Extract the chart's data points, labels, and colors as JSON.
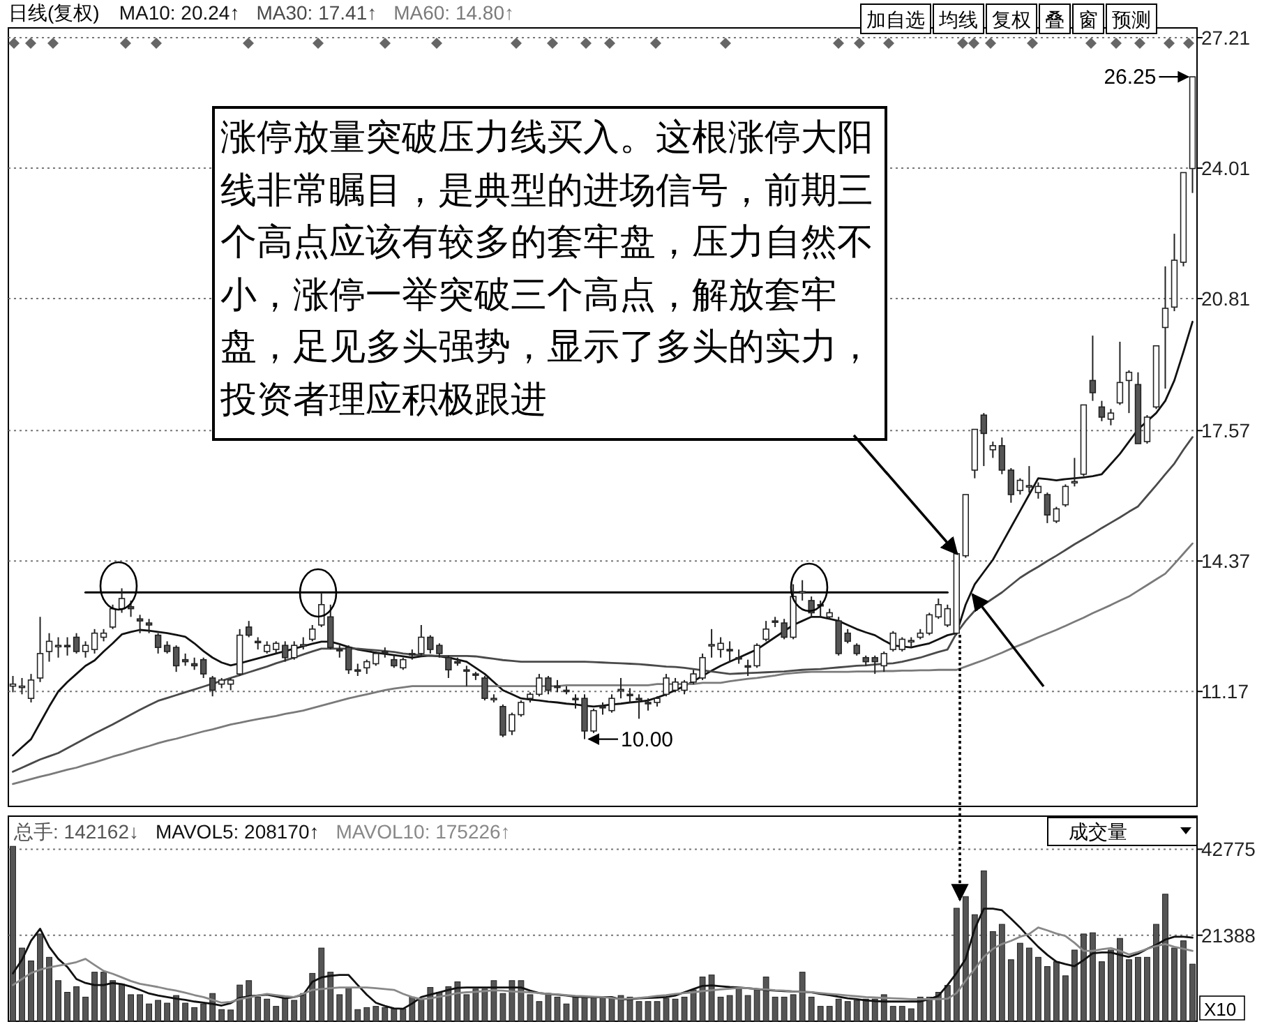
{
  "chart_data": [
    {
      "type": "candlestick",
      "title": "日线(复权)",
      "categories": [
        null,
        null,
        null,
        null,
        null,
        null,
        null,
        null,
        null,
        null,
        null,
        null,
        null,
        null,
        null,
        null,
        null,
        null,
        null,
        null,
        null,
        null,
        null,
        null,
        null,
        null,
        null,
        null,
        null,
        null,
        null,
        null,
        null,
        null,
        null,
        null,
        null,
        null,
        null,
        null,
        null,
        null,
        null,
        null,
        null,
        null,
        null,
        null,
        null,
        null,
        null,
        null,
        null,
        null,
        null,
        null,
        null,
        null,
        null,
        null,
        null,
        null,
        null,
        null,
        null,
        null,
        null,
        null,
        null,
        null,
        null,
        null,
        null,
        null,
        null,
        null,
        null,
        null,
        null,
        null,
        null,
        null,
        null,
        null,
        null,
        null,
        null,
        null,
        null,
        null,
        null,
        null,
        null,
        null,
        null,
        null,
        null,
        null,
        null,
        null,
        null,
        null,
        null,
        null,
        null,
        null,
        null,
        null,
        null,
        null,
        null,
        null,
        null,
        null,
        null,
        null,
        null,
        null,
        null,
        null,
        null,
        null,
        null,
        null,
        null,
        null,
        null,
        null,
        null,
        null,
        null
      ],
      "ohlc": [
        [
          11.3,
          11.55,
          11.15,
          11.35
        ],
        [
          11.3,
          11.5,
          11.1,
          11.3
        ],
        [
          11.0,
          11.6,
          10.9,
          11.45
        ],
        [
          11.5,
          13.0,
          11.4,
          12.1
        ],
        [
          12.15,
          12.6,
          11.9,
          12.4
        ],
        [
          12.3,
          12.5,
          12.0,
          12.3
        ],
        [
          12.3,
          12.5,
          12.05,
          12.28
        ],
        [
          12.5,
          12.6,
          12.1,
          12.15
        ],
        [
          12.15,
          12.4,
          12.0,
          12.3
        ],
        [
          12.2,
          12.7,
          12.1,
          12.6
        ],
        [
          12.5,
          12.7,
          12.4,
          12.6
        ],
        [
          12.75,
          13.3,
          12.7,
          13.2
        ],
        [
          13.2,
          13.7,
          13.1,
          13.45
        ],
        [
          13.25,
          13.4,
          13.0,
          13.2
        ],
        [
          12.95,
          13.05,
          12.6,
          12.9
        ],
        [
          12.85,
          12.95,
          12.6,
          12.8
        ],
        [
          12.55,
          12.6,
          12.1,
          12.25
        ],
        [
          12.3,
          12.4,
          12.1,
          12.15
        ],
        [
          12.25,
          12.3,
          11.65,
          11.8
        ],
        [
          11.95,
          12.1,
          11.8,
          11.9
        ],
        [
          11.85,
          12.0,
          11.7,
          11.8
        ],
        [
          11.95,
          12.0,
          11.5,
          11.6
        ],
        [
          11.5,
          11.55,
          11.05,
          11.2
        ],
        [
          11.35,
          11.5,
          11.25,
          11.45
        ],
        [
          11.35,
          11.5,
          11.2,
          11.45
        ],
        [
          11.6,
          12.7,
          11.55,
          12.55
        ],
        [
          12.75,
          12.9,
          12.5,
          12.55
        ],
        [
          12.4,
          12.5,
          12.2,
          12.38
        ],
        [
          12.15,
          12.4,
          12.1,
          12.3
        ],
        [
          12.2,
          12.4,
          12.1,
          12.35
        ],
        [
          12.3,
          12.4,
          11.9,
          12.0
        ],
        [
          12.0,
          12.4,
          11.95,
          12.3
        ],
        [
          12.3,
          12.5,
          12.2,
          12.32
        ],
        [
          12.45,
          12.8,
          12.4,
          12.7
        ],
        [
          12.8,
          13.6,
          12.75,
          13.3
        ],
        [
          13.0,
          13.3,
          12.2,
          12.25
        ],
        [
          12.2,
          12.3,
          12.0,
          12.18
        ],
        [
          12.25,
          12.3,
          11.6,
          11.7
        ],
        [
          11.7,
          11.85,
          11.55,
          11.68
        ],
        [
          11.75,
          11.95,
          11.6,
          11.9
        ],
        [
          11.85,
          12.15,
          11.8,
          12.1
        ],
        [
          12.15,
          12.25,
          12.0,
          12.13
        ],
        [
          11.95,
          12.05,
          11.75,
          11.8
        ],
        [
          11.75,
          12.0,
          11.7,
          11.95
        ],
        [
          12.1,
          12.2,
          11.95,
          12.08
        ],
        [
          12.1,
          12.8,
          12.05,
          12.5
        ],
        [
          12.5,
          12.55,
          12.1,
          12.2
        ],
        [
          12.3,
          12.35,
          12.0,
          12.1
        ],
        [
          12.0,
          12.05,
          11.5,
          11.7
        ],
        [
          11.9,
          12.0,
          11.8,
          11.88
        ],
        [
          11.7,
          11.8,
          11.3,
          11.68
        ],
        [
          11.6,
          11.65,
          11.45,
          11.58
        ],
        [
          11.5,
          11.55,
          10.95,
          11.0
        ],
        [
          11.0,
          11.1,
          10.9,
          11.0
        ],
        [
          10.8,
          10.85,
          10.05,
          10.1
        ],
        [
          10.2,
          10.65,
          10.1,
          10.6
        ],
        [
          10.6,
          10.95,
          10.55,
          10.9
        ],
        [
          11.0,
          11.15,
          10.9,
          11.1
        ],
        [
          11.1,
          11.6,
          11.05,
          11.5
        ],
        [
          11.5,
          11.55,
          11.1,
          11.2
        ],
        [
          11.3,
          11.45,
          11.15,
          11.28
        ],
        [
          11.2,
          11.3,
          11.1,
          11.18
        ],
        [
          11.0,
          11.1,
          10.75,
          10.98
        ],
        [
          11.0,
          11.1,
          10.0,
          10.2
        ],
        [
          10.2,
          10.75,
          10.15,
          10.7
        ],
        [
          10.8,
          10.9,
          10.6,
          10.78
        ],
        [
          10.7,
          11.1,
          10.65,
          11.0
        ],
        [
          11.2,
          11.5,
          11.0,
          11.22
        ],
        [
          11.1,
          11.25,
          10.9,
          11.08
        ],
        [
          11.0,
          11.1,
          10.5,
          10.98
        ],
        [
          10.9,
          11.0,
          10.7,
          10.88
        ],
        [
          10.9,
          11.05,
          10.8,
          11.0
        ],
        [
          11.1,
          11.6,
          11.05,
          11.5
        ],
        [
          11.2,
          11.5,
          11.15,
          11.4
        ],
        [
          11.2,
          11.45,
          11.1,
          11.4
        ],
        [
          11.4,
          11.7,
          11.35,
          11.6
        ],
        [
          11.5,
          12.1,
          11.45,
          12.0
        ],
        [
          12.3,
          12.7,
          12.0,
          12.32
        ],
        [
          12.2,
          12.5,
          12.0,
          12.35
        ],
        [
          12.2,
          12.4,
          11.9,
          12.18
        ],
        [
          12.0,
          12.2,
          11.85,
          11.98
        ],
        [
          11.8,
          11.95,
          11.55,
          11.78
        ],
        [
          11.8,
          12.35,
          11.75,
          12.3
        ],
        [
          12.45,
          12.9,
          12.4,
          12.7
        ],
        [
          12.9,
          13.0,
          12.75,
          12.88
        ],
        [
          12.85,
          12.95,
          12.45,
          12.5
        ],
        [
          12.5,
          13.8,
          12.45,
          13.5
        ],
        [
          13.6,
          13.9,
          13.4,
          13.62
        ],
        [
          13.4,
          13.5,
          13.0,
          13.1
        ],
        [
          13.3,
          13.4,
          13.0,
          13.28
        ],
        [
          13.0,
          13.2,
          12.95,
          13.1
        ],
        [
          12.9,
          13.0,
          12.05,
          12.1
        ],
        [
          12.6,
          12.7,
          12.35,
          12.4
        ],
        [
          12.3,
          12.35,
          12.05,
          12.1
        ],
        [
          12.0,
          12.05,
          11.8,
          11.9
        ],
        [
          12.0,
          12.05,
          11.6,
          11.9
        ],
        [
          11.8,
          12.15,
          11.65,
          12.1
        ],
        [
          12.2,
          12.65,
          12.15,
          12.6
        ],
        [
          12.2,
          12.5,
          12.15,
          12.45
        ],
        [
          12.4,
          12.5,
          12.25,
          12.42
        ],
        [
          12.5,
          12.7,
          12.45,
          12.6
        ],
        [
          12.6,
          13.1,
          12.55,
          13.05
        ],
        [
          13.0,
          13.45,
          12.95,
          13.3
        ],
        [
          12.8,
          13.3,
          12.75,
          13.2
        ],
        [
          12.6,
          14.55,
          12.55,
          14.55
        ],
        [
          14.5,
          16.0,
          14.45,
          16.0
        ],
        [
          16.6,
          17.6,
          16.4,
          17.6
        ],
        [
          17.95,
          18.0,
          16.7,
          17.5
        ],
        [
          17.1,
          17.3,
          16.9,
          17.2
        ],
        [
          17.2,
          17.4,
          16.5,
          16.6
        ],
        [
          16.6,
          16.65,
          15.8,
          16.0
        ],
        [
          16.1,
          16.4,
          16.0,
          16.35
        ],
        [
          16.2,
          16.7,
          16.05,
          16.22
        ],
        [
          16.05,
          16.3,
          15.9,
          16.2
        ],
        [
          16.0,
          16.05,
          15.3,
          15.5
        ],
        [
          15.35,
          15.7,
          15.3,
          15.65
        ],
        [
          15.75,
          16.25,
          15.7,
          16.2
        ],
        [
          16.3,
          16.9,
          16.2,
          16.32
        ],
        [
          16.5,
          18.2,
          16.45,
          18.2
        ],
        [
          18.8,
          19.9,
          18.3,
          18.5
        ],
        [
          18.15,
          18.3,
          17.8,
          17.9
        ],
        [
          17.85,
          18.1,
          17.7,
          18.0
        ],
        [
          18.25,
          19.75,
          18.2,
          18.75
        ],
        [
          18.8,
          19.05,
          18.0,
          19.0
        ],
        [
          18.7,
          19.0,
          17.25,
          17.25
        ],
        [
          17.3,
          17.95,
          17.25,
          17.9
        ],
        [
          18.15,
          19.65,
          18.1,
          19.65
        ],
        [
          20.1,
          21.6,
          18.6,
          20.57
        ],
        [
          20.6,
          22.4,
          20.5,
          21.75
        ],
        [
          21.7,
          23.9,
          21.6,
          23.9
        ],
        [
          24.0,
          26.25,
          23.4,
          26.25
        ]
      ],
      "series": [
        {
          "name": "MA10: 20.24↑",
          "type": "line",
          "color": "#111111",
          "values": [
            9.6,
            9.8,
            10.0,
            10.4,
            10.8,
            11.17,
            11.4,
            11.6,
            11.8,
            11.93,
            12.15,
            12.35,
            12.57,
            12.63,
            12.68,
            12.66,
            12.63,
            12.6,
            12.56,
            12.51,
            12.35,
            12.16,
            12.0,
            11.88,
            11.81,
            11.86,
            11.92,
            11.98,
            12.04,
            12.1,
            12.16,
            12.22,
            12.28,
            12.34,
            12.39,
            12.39,
            12.33,
            12.26,
            12.2,
            12.16,
            12.12,
            12.09,
            12.06,
            12.03,
            12.0,
            12.03,
            12.05,
            12.03,
            12.0,
            11.95,
            11.9,
            11.75,
            11.6,
            11.4,
            11.2,
            11.1,
            11.0,
            10.97,
            10.95,
            10.92,
            10.9,
            10.87,
            10.85,
            10.82,
            10.8,
            10.82,
            10.85,
            10.87,
            10.9,
            10.92,
            10.95,
            11.02,
            11.1,
            11.2,
            11.3,
            11.42,
            11.55,
            11.68,
            11.8,
            11.9,
            12.0,
            12.1,
            12.2,
            12.35,
            12.5,
            12.65,
            12.8,
            12.9,
            13.0,
            13.0,
            12.95,
            12.9,
            12.8,
            12.7,
            12.62,
            12.55,
            12.42,
            12.3,
            12.27,
            12.25,
            12.3,
            12.35,
            12.45,
            12.55,
            12.6,
            13.3,
            13.8,
            14.1,
            14.4,
            14.8,
            15.2,
            15.6,
            16.0,
            16.4,
            16.38,
            16.35,
            16.38,
            16.4,
            16.42,
            16.45,
            16.5,
            16.75,
            17.0,
            17.3,
            17.6,
            17.8,
            18.0,
            18.3,
            18.8,
            19.5,
            20.24
          ]
        },
        {
          "name": "MA30: 17.41↑",
          "type": "line",
          "color": "#4a4a4a",
          "values": [
            9.2,
            9.3,
            9.4,
            9.5,
            9.58,
            9.66,
            9.78,
            9.9,
            10.02,
            10.14,
            10.25,
            10.36,
            10.48,
            10.6,
            10.72,
            10.83,
            10.94,
            11.01,
            11.08,
            11.15,
            11.22,
            11.29,
            11.36,
            11.43,
            11.5,
            11.57,
            11.64,
            11.71,
            11.78,
            11.86,
            11.93,
            12.0,
            12.08,
            12.15,
            12.22,
            12.22,
            12.22,
            12.22,
            12.22,
            12.2,
            12.18,
            12.16,
            12.14,
            12.1,
            12.08,
            12.06,
            12.05,
            12.04,
            12.04,
            12.04,
            12.04,
            12.03,
            12.0,
            11.97,
            11.94,
            11.92,
            11.9,
            11.9,
            11.9,
            11.9,
            11.9,
            11.9,
            11.9,
            11.9,
            11.89,
            11.88,
            11.87,
            11.86,
            11.85,
            11.84,
            11.82,
            11.8,
            11.78,
            11.77,
            11.75,
            11.72,
            11.69,
            11.66,
            11.63,
            11.6,
            11.61,
            11.62,
            11.63,
            11.64,
            11.65,
            11.66,
            11.68,
            11.7,
            11.71,
            11.72,
            11.74,
            11.76,
            11.78,
            11.8,
            11.81,
            11.83,
            11.85,
            11.86,
            11.9,
            11.95,
            12.0,
            12.07,
            12.14,
            12.2,
            12.6,
            12.9,
            13.15,
            13.3,
            13.45,
            13.6,
            13.78,
            13.96,
            14.1,
            14.23,
            14.37,
            14.5,
            14.64,
            14.78,
            14.91,
            15.04,
            15.18,
            15.31,
            15.44,
            15.58,
            15.71,
            15.97,
            16.23,
            16.5,
            16.76,
            17.1,
            17.41
          ]
        },
        {
          "name": "MA60: 14.80↑",
          "type": "line",
          "color": "#7a7a7a",
          "values": [
            8.9,
            8.96,
            9.02,
            9.08,
            9.13,
            9.19,
            9.25,
            9.3,
            9.37,
            9.43,
            9.5,
            9.57,
            9.63,
            9.7,
            9.77,
            9.83,
            9.9,
            9.96,
            10.01,
            10.07,
            10.13,
            10.19,
            10.24,
            10.3,
            10.36,
            10.4,
            10.45,
            10.49,
            10.53,
            10.57,
            10.62,
            10.66,
            10.7,
            10.76,
            10.82,
            10.88,
            10.94,
            11.0,
            11.05,
            11.1,
            11.15,
            11.2,
            11.24,
            11.27,
            11.3,
            11.3,
            11.3,
            11.3,
            11.3,
            11.3,
            11.3,
            11.3,
            11.3,
            11.3,
            11.3,
            11.3,
            11.3,
            11.3,
            11.3,
            11.3,
            11.3,
            11.32,
            11.32,
            11.32,
            11.32,
            11.32,
            11.32,
            11.32,
            11.32,
            11.32,
            11.32,
            11.35,
            11.35,
            11.35,
            11.35,
            11.35,
            11.38,
            11.38,
            11.38,
            11.42,
            11.45,
            11.48,
            11.5,
            11.53,
            11.56,
            11.6,
            11.62,
            11.64,
            11.65,
            11.65,
            11.65,
            11.65,
            11.65,
            11.66,
            11.66,
            11.66,
            11.67,
            11.67,
            11.68,
            11.68,
            11.69,
            11.69,
            11.7,
            11.7,
            11.7,
            11.78,
            11.86,
            11.94,
            12.03,
            12.12,
            12.22,
            12.31,
            12.4,
            12.5,
            12.59,
            12.68,
            12.78,
            12.88,
            12.98,
            13.09,
            13.19,
            13.29,
            13.4,
            13.5,
            13.64,
            13.78,
            13.92,
            14.06,
            14.3,
            14.55,
            14.8
          ]
        },
        {
          "type": "line",
          "color": "#000000",
          "values": [
            null,
            null,
            null,
            null,
            null,
            null,
            null,
            null,
            13.6,
            13.6,
            13.6,
            13.6,
            13.6,
            13.6,
            13.6,
            13.6,
            13.6,
            13.6,
            13.6,
            13.6,
            13.6,
            13.6,
            13.6,
            13.6,
            13.6,
            13.6,
            13.6,
            13.6,
            13.6,
            13.6,
            13.6,
            13.6,
            13.6,
            13.6,
            13.6,
            13.6,
            13.6,
            13.6,
            13.6,
            13.6,
            13.6,
            13.6,
            13.6,
            13.6,
            13.6,
            13.6,
            13.6,
            13.6,
            13.6,
            13.6,
            13.6,
            13.6,
            13.6,
            13.6,
            13.6,
            13.6,
            13.6,
            13.6,
            13.6,
            13.6,
            13.6,
            13.6,
            13.6,
            13.6,
            13.6,
            13.6,
            13.6,
            13.6,
            13.6,
            13.6,
            13.6,
            13.6,
            13.6,
            13.6,
            13.6,
            13.6,
            13.6,
            13.6,
            13.6,
            13.6,
            13.6,
            13.6,
            13.6,
            13.6,
            13.6,
            13.6,
            13.6,
            13.6,
            13.6,
            13.6,
            13.6,
            13.6,
            13.6,
            13.6,
            13.6,
            13.6,
            13.6,
            13.6,
            13.6,
            13.6,
            13.6,
            13.6,
            13.6,
            13.6,
            null,
            null,
            null,
            null,
            null,
            null,
            null,
            null,
            null,
            null,
            null,
            null,
            null,
            null,
            null,
            null,
            null,
            null,
            null,
            null,
            null,
            null,
            null,
            null,
            null,
            null,
            null
          ]
        }
      ],
      "ylim": [
        8.35,
        27.45
      ],
      "yticks": [
        11.17,
        14.37,
        17.57,
        20.81,
        24.01,
        27.21
      ],
      "grid": "y",
      "tick_labels": "y",
      "legend": "top left",
      "annotations": [
        "涨停放量突破压力线买入。这根涨停大阳线非常瞩目，是典型的进场信号，前期三个高点应该有较多的套牢盘，压力自然不小，涨停一举突破三个高点，解放套牢盘，足见多头强势，显示了多头的实力，投资者理应积极跟进",
        "加自选",
        "均线",
        "复权",
        "叠",
        "窗",
        "预测",
        "26.25",
        "10.00"
      ]
    },
    {
      "type": "bar",
      "categories": [
        null,
        null,
        null,
        null,
        null,
        null,
        null,
        null,
        null,
        null,
        null,
        null,
        null,
        null,
        null,
        null,
        null,
        null,
        null,
        null,
        null,
        null,
        null,
        null,
        null,
        null,
        null,
        null,
        null,
        null,
        null,
        null,
        null,
        null,
        null,
        null,
        null,
        null,
        null,
        null,
        null,
        null,
        null,
        null,
        null,
        null,
        null,
        null,
        null,
        null,
        null,
        null,
        null,
        null,
        null,
        null,
        null,
        null,
        null,
        null,
        null,
        null,
        null,
        null,
        null,
        null,
        null,
        null,
        null,
        null,
        null,
        null,
        null,
        null,
        null,
        null,
        null,
        null,
        null,
        null,
        null,
        null,
        null,
        null,
        null,
        null,
        null,
        null,
        null,
        null,
        null,
        null,
        null,
        null,
        null,
        null,
        null,
        null,
        null,
        null,
        null,
        null,
        null,
        null,
        null,
        null,
        null,
        null,
        null,
        null,
        null,
        null,
        null,
        null,
        null,
        null,
        null,
        null,
        null,
        null,
        null,
        null,
        null,
        null,
        null,
        null,
        null,
        null,
        null,
        null,
        null
      ],
      "series": [
        {
          "name": "总手: 142162↓",
          "type": "bar",
          "color": "#555555",
          "values": [
            43500,
            18200,
            15000,
            21700,
            15900,
            10100,
            7200,
            8600,
            6000,
            12200,
            12200,
            10100,
            9200,
            6600,
            6600,
            4300,
            5200,
            4500,
            6400,
            4500,
            3400,
            4300,
            6900,
            2900,
            2800,
            9000,
            10100,
            6000,
            5500,
            3700,
            5700,
            5200,
            6900,
            11900,
            18200,
            12200,
            6600,
            8400,
            2900,
            3400,
            3700,
            3400,
            3100,
            3100,
            6000,
            5500,
            8400,
            7200,
            8600,
            9800,
            6600,
            8000,
            8000,
            10100,
            6900,
            10100,
            10100,
            6600,
            4900,
            6900,
            6000,
            4300,
            6000,
            6000,
            6000,
            6000,
            5900,
            6400,
            6000,
            4900,
            4900,
            4900,
            5700,
            5500,
            6000,
            7800,
            11000,
            11500,
            6000,
            6400,
            8400,
            6400,
            7800,
            11000,
            6000,
            6000,
            6600,
            12200,
            6000,
            3700,
            3700,
            5500,
            4900,
            5200,
            5500,
            5500,
            6600,
            3700,
            3700,
            3100,
            6000,
            6000,
            7200,
            8900,
            28100,
            31000,
            26500,
            37400,
            22300,
            24100,
            15300,
            19400,
            18200,
            15900,
            13600,
            14800,
            11300,
            17700,
            21700,
            22000,
            14800,
            17700,
            20600,
            15300,
            15900,
            15900,
            24100,
            31600,
            18200,
            20000,
            14200
          ]
        },
        {
          "name": "MAVOL5: 208170↑",
          "type": "line",
          "color": "#111111",
          "values": [
            11900,
            15300,
            20000,
            23000,
            18500,
            15500,
            13500,
            10500,
            9500,
            9000,
            9000,
            9500,
            9200,
            8600,
            7800,
            6900,
            6400,
            6000,
            5600,
            5300,
            4900,
            4600,
            4300,
            3900,
            4500,
            5800,
            6200,
            6400,
            6600,
            6200,
            5700,
            6000,
            6600,
            9800,
            10900,
            11300,
            11500,
            11500,
            9000,
            6600,
            4600,
            3800,
            3200,
            3100,
            4400,
            6000,
            6600,
            7200,
            7800,
            8300,
            8400,
            8400,
            8400,
            8400,
            8400,
            8400,
            8400,
            7600,
            7000,
            6800,
            6600,
            6400,
            6100,
            6000,
            6000,
            6000,
            6000,
            5400,
            5500,
            5700,
            5800,
            5900,
            6000,
            6400,
            7200,
            8000,
            8800,
            8900,
            8700,
            8500,
            8400,
            8200,
            8000,
            7800,
            7600,
            7500,
            7400,
            7300,
            7200,
            6800,
            6500,
            6100,
            5700,
            5500,
            5200,
            5000,
            4900,
            4900,
            4900,
            4900,
            4900,
            5500,
            6300,
            9000,
            12000,
            15500,
            23000,
            28000,
            28000,
            27600,
            25500,
            23300,
            20800,
            18500,
            16500,
            14800,
            14200,
            13700,
            15200,
            16900,
            17100,
            17100,
            16500,
            16000,
            16800,
            18000,
            19000,
            20300,
            21000,
            21000,
            20800
          ]
        },
        {
          "name": "MAVOL10: 175226↑",
          "type": "line",
          "color": "#888888",
          "values": [
            9000,
            10500,
            12000,
            12800,
            13400,
            13800,
            14200,
            14700,
            15500,
            14000,
            12500,
            11800,
            10900,
            10000,
            9300,
            8900,
            8500,
            8000,
            7600,
            7100,
            6500,
            6000,
            5300,
            4600,
            4800,
            5500,
            5900,
            6400,
            6800,
            6500,
            6200,
            6000,
            6800,
            7800,
            8000,
            8200,
            8400,
            8400,
            8400,
            8400,
            8200,
            8000,
            7800,
            6800,
            6000,
            5500,
            5700,
            6100,
            6500,
            7000,
            7200,
            7300,
            7500,
            7700,
            7600,
            7400,
            7300,
            7200,
            7000,
            6800,
            6700,
            6500,
            6300,
            6200,
            6100,
            6000,
            5800,
            5500,
            5600,
            5800,
            6000,
            6300,
            6500,
            6800,
            7000,
            7200,
            7500,
            7700,
            7900,
            8100,
            8300,
            8200,
            8000,
            7900,
            7700,
            7600,
            7400,
            7300,
            7200,
            7000,
            6800,
            6600,
            6400,
            6200,
            6000,
            5900,
            5800,
            5700,
            5600,
            5500,
            5500,
            5500,
            5500,
            5600,
            7000,
            10100,
            13000,
            16000,
            18000,
            19200,
            20000,
            21000,
            21700,
            23300,
            22600,
            21800,
            21200,
            19500,
            17500,
            17500,
            17900,
            18200,
            17500,
            16600,
            17200,
            18000,
            18700,
            19200,
            18500,
            18000,
            17500
          ]
        }
      ],
      "ylim": [
        0,
        51000
      ],
      "yticks": [
        21388,
        42775
      ],
      "grid": "y",
      "tick_labels": "y",
      "legend": "top left",
      "annotations": [
        "成交量",
        "X10"
      ]
    }
  ]
}
